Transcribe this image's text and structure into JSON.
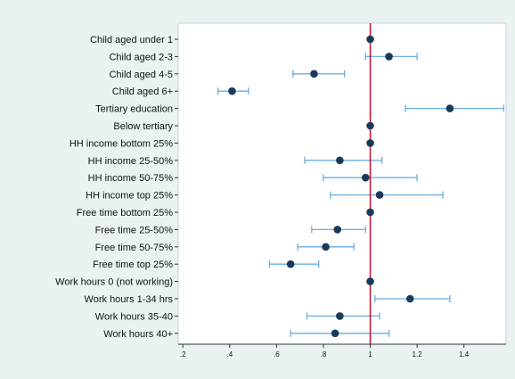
{
  "chart_data": {
    "type": "scatter",
    "title": "",
    "xlabel": "",
    "ylabel": "",
    "xlim": [
      0.18,
      1.58
    ],
    "xticks": [
      0.2,
      0.4,
      0.6,
      0.8,
      1,
      1.2,
      1.4
    ],
    "xtick_labels": [
      ".2",
      ".4",
      ".6",
      ".8",
      "1",
      "1.2",
      "1.4"
    ],
    "reference_line": {
      "x": 1,
      "color": "#c8102e"
    },
    "marker_color": "#1a3a5c",
    "ci_color": "#6aaee0",
    "background_color": "#eaf2f3",
    "plot_background_color": "#ffffff",
    "categories": [
      "Child aged under 1",
      "Child aged 2-3",
      "Child aged 4-5",
      "Child aged 6+",
      "Tertiary education",
      "Below tertiary",
      "HH income bottom 25%",
      "HH income 25-50%",
      "HH income 50-75%",
      "HH income top 25%",
      "Free time bottom 25%",
      "Free time 25-50%",
      "Free time 50-75%",
      "Free time top 25%",
      "Work hours 0 (not working)",
      "Work hours 1-34 hrs",
      "Work hours 35-40",
      "Work hours 40+"
    ],
    "estimates": [
      1.0,
      1.08,
      0.76,
      0.41,
      1.34,
      1.0,
      1.0,
      0.87,
      0.98,
      1.04,
      1.0,
      0.86,
      0.81,
      0.66,
      1.0,
      1.17,
      0.87,
      0.85
    ],
    "ci_low": [
      null,
      0.98,
      0.67,
      0.35,
      1.15,
      null,
      null,
      0.72,
      0.8,
      0.83,
      null,
      0.75,
      0.69,
      0.57,
      null,
      1.02,
      0.73,
      0.66
    ],
    "ci_high": [
      null,
      1.2,
      0.89,
      0.48,
      1.57,
      null,
      null,
      1.05,
      1.2,
      1.31,
      null,
      0.98,
      0.93,
      0.78,
      null,
      1.34,
      1.04,
      1.08
    ]
  }
}
